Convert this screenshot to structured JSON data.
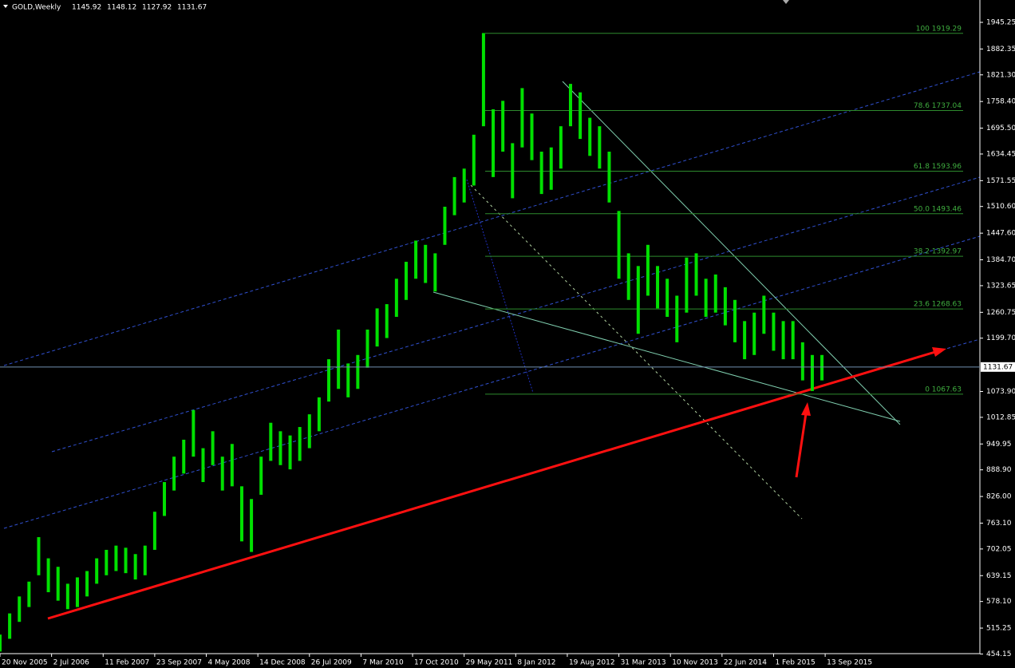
{
  "chart_data": {
    "type": "range-bar",
    "title": "GOLD,Weekly",
    "header_values": [
      1145.92,
      1148.12,
      1127.92,
      1131.67
    ],
    "x": [
      0,
      6,
      12,
      18,
      24,
      30,
      36,
      42,
      48,
      54,
      60,
      66,
      72,
      78,
      84,
      90,
      96,
      102,
      108,
      114,
      120,
      126,
      132,
      138,
      144,
      150,
      156,
      162,
      168,
      174,
      180,
      186,
      192,
      198,
      204,
      210,
      216,
      222,
      228,
      234,
      240,
      246,
      252,
      258,
      264,
      270,
      276,
      282,
      288,
      294,
      300,
      306,
      312,
      318,
      324,
      330,
      336,
      342,
      348,
      354,
      360,
      366,
      372,
      378,
      384,
      390,
      396,
      402,
      408,
      414,
      420,
      426,
      432,
      438,
      444,
      450,
      456,
      462,
      468,
      474,
      480,
      486,
      492,
      498,
      504,
      510
    ],
    "lows": [
      460,
      490,
      530,
      565,
      640,
      600,
      580,
      560,
      565,
      590,
      620,
      640,
      650,
      645,
      630,
      640,
      700,
      780,
      840,
      880,
      920,
      860,
      900,
      840,
      850,
      720,
      695,
      830,
      910,
      900,
      890,
      910,
      940,
      980,
      1050,
      1080,
      1060,
      1080,
      1130,
      1180,
      1200,
      1250,
      1290,
      1340,
      1330,
      1310,
      1420,
      1490,
      1520,
      1560,
      1700,
      1580,
      1640,
      1530,
      1650,
      1620,
      1540,
      1550,
      1600,
      1700,
      1670,
      1630,
      1600,
      1520,
      1340,
      1290,
      1210,
      1300,
      1270,
      1250,
      1190,
      1260,
      1300,
      1250,
      1260,
      1230,
      1190,
      1150,
      1160,
      1210,
      1170,
      1150,
      1150,
      1100,
      1075,
      1100
    ],
    "highs": [
      500,
      550,
      590,
      625,
      730,
      680,
      660,
      620,
      635,
      650,
      680,
      700,
      710,
      705,
      690,
      710,
      790,
      860,
      920,
      960,
      1030,
      940,
      980,
      920,
      950,
      850,
      820,
      920,
      1000,
      980,
      970,
      990,
      1020,
      1060,
      1150,
      1220,
      1140,
      1160,
      1220,
      1270,
      1280,
      1340,
      1380,
      1430,
      1420,
      1400,
      1510,
      1580,
      1600,
      1680,
      1920,
      1740,
      1760,
      1660,
      1790,
      1730,
      1640,
      1650,
      1700,
      1800,
      1780,
      1720,
      1700,
      1640,
      1500,
      1400,
      1370,
      1420,
      1370,
      1340,
      1300,
      1390,
      1400,
      1340,
      1350,
      1320,
      1290,
      1240,
      1260,
      1300,
      1260,
      1240,
      1240,
      1190,
      1160,
      1160
    ],
    "color": "#00e000",
    "xlim": [
      0,
      608
    ],
    "ylim": [
      455,
      1998
    ],
    "xticks": [
      {
        "value": 0,
        "label": "20 Nov 2005"
      },
      {
        "value": 32,
        "label": "2 Jul 2006"
      },
      {
        "value": 64,
        "label": "11 Feb 2007"
      },
      {
        "value": 96,
        "label": "23 Sep 2007"
      },
      {
        "value": 128,
        "label": "4 May 2008"
      },
      {
        "value": 160,
        "label": "14 Dec 2008"
      },
      {
        "value": 192,
        "label": "26 Jul 2009"
      },
      {
        "value": 224,
        "label": "7 Mar 2010"
      },
      {
        "value": 256,
        "label": "17 Oct 2010"
      },
      {
        "value": 288,
        "label": "29 May 2011"
      },
      {
        "value": 320,
        "label": "8 Jan 2012"
      },
      {
        "value": 352,
        "label": "19 Aug 2012"
      },
      {
        "value": 384,
        "label": "31 Mar 2013"
      },
      {
        "value": 416,
        "label": "10 Nov 2013"
      },
      {
        "value": 448,
        "label": "22 Jun 2014"
      },
      {
        "value": 480,
        "label": "1 Feb 2015"
      },
      {
        "value": 512,
        "label": "13 Sep 2015"
      }
    ],
    "yticks": [
      1945.25,
      1882.35,
      {
        "value": 1821.3,
        "label": "1821.30"
      },
      {
        "value": 1758.4,
        "label": "1758.40"
      },
      {
        "value": 1695.5,
        "label": "1695.50"
      },
      1634.45,
      1571.55,
      {
        "value": 1510.6,
        "label": "1510.60"
      },
      {
        "value": 1447.6,
        "label": "1447.60"
      },
      {
        "value": 1384.7,
        "label": "1384.70"
      },
      1323.65,
      1260.75,
      {
        "value": 1199.7,
        "label": "1199.70"
      },
      {
        "value": 1073.9,
        "label": "1073.90"
      },
      1012.85,
      949.95,
      {
        "value": 888.9,
        "label": "888.90"
      },
      {
        "value": 826,
        "label": "826.00"
      },
      {
        "value": 763.1,
        "label": "763.10"
      },
      702.05,
      639.15,
      {
        "value": 578.1,
        "label": "578.10"
      },
      515.25,
      454.15
    ],
    "current_price": 1131.67,
    "fib_levels": [
      {
        "label": "100 1919.29",
        "value": 1919.29
      },
      {
        "label": "78.6 1737.04",
        "value": 1737.04
      },
      {
        "label": "61.8 1593.96",
        "value": 1593.96
      },
      {
        "label": "50.0 1493.46",
        "value": 1493.46
      },
      {
        "label": "38.2 1392.97",
        "value": 1392.97
      },
      {
        "label": "23.6 1268.63",
        "value": 1268.63
      },
      {
        "label": "0 1067.63",
        "value": 1067.63
      }
    ]
  }
}
